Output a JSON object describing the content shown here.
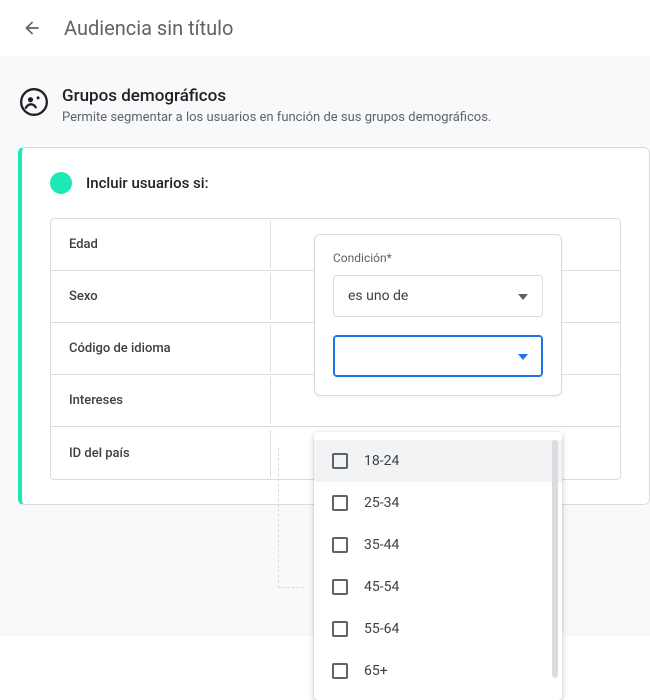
{
  "header": {
    "title": "Audiencia sin título"
  },
  "section": {
    "title": "Grupos demográficos",
    "description": "Permite segmentar a los usuarios en función de sus grupos demográficos."
  },
  "colors": {
    "accent": "#1de9b6",
    "primary": "#1a73e8",
    "border": "#dadce0",
    "text_muted": "#5f6368",
    "surface_alt": "#f8f9fa",
    "hover": "#f1f3f4"
  },
  "include": {
    "label": "Incluir usuarios si:",
    "dot_color": "#1de9b6"
  },
  "rows": [
    {
      "label": "Edad"
    },
    {
      "label": "Sexo"
    },
    {
      "label": "Código de idioma"
    },
    {
      "label": "Intereses"
    },
    {
      "label": "ID del país"
    }
  ],
  "condition": {
    "field_label": "Condición*",
    "selected": "es uno de"
  },
  "value_dropdown": {
    "selected": "",
    "options": [
      {
        "label": "18-24",
        "checked": false,
        "hover": true
      },
      {
        "label": "25-34",
        "checked": false
      },
      {
        "label": "35-44",
        "checked": false
      },
      {
        "label": "45-54",
        "checked": false
      },
      {
        "label": "55-64",
        "checked": false
      },
      {
        "label": "65+",
        "checked": false
      }
    ]
  }
}
